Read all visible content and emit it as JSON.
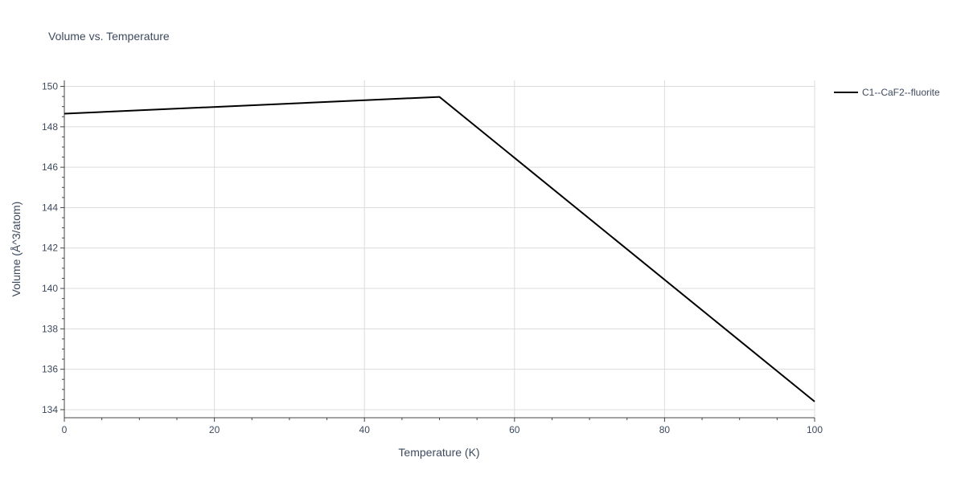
{
  "chart_data": {
    "type": "line",
    "title": "Volume vs. Temperature",
    "xlabel": "Temperature (K)",
    "ylabel": "Volume (Å^3/atom)",
    "xlim": [
      0,
      100
    ],
    "ylim": [
      133.6,
      150.3
    ],
    "x_ticks": [
      0,
      20,
      40,
      60,
      80,
      100
    ],
    "y_ticks": [
      134,
      136,
      138,
      140,
      142,
      144,
      146,
      148,
      150
    ],
    "grid": true,
    "legend_position": "top-right",
    "series": [
      {
        "name": "C1--CaF2--fluorite",
        "color": "#000000",
        "x": [
          0,
          50,
          100
        ],
        "y": [
          148.65,
          149.48,
          134.4
        ]
      }
    ]
  }
}
